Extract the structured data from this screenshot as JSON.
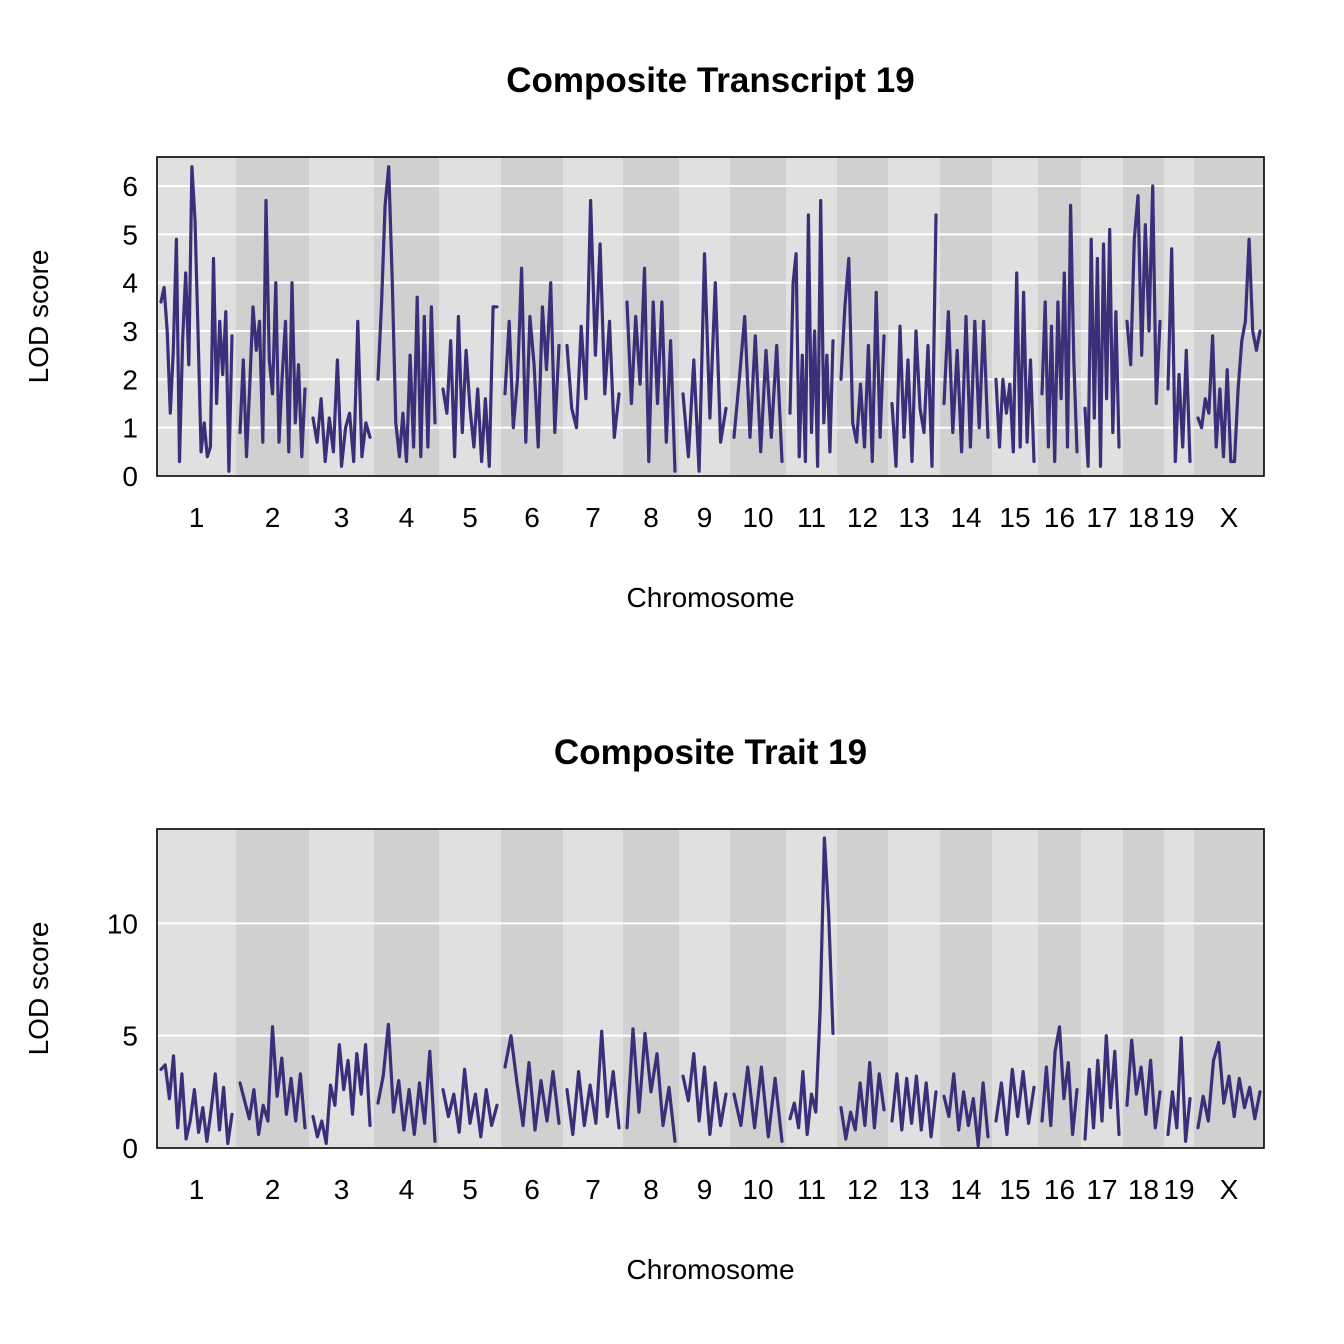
{
  "chart_data": [
    {
      "type": "line",
      "title": "Composite Transcript 19",
      "xlabel": "Chromosome",
      "ylabel": "LOD score",
      "ylim": [
        0,
        6.6
      ],
      "yticks": [
        0,
        1,
        2,
        3,
        4,
        5,
        6
      ],
      "grid": true,
      "chromosomes": [
        "1",
        "2",
        "3",
        "4",
        "5",
        "6",
        "7",
        "8",
        "9",
        "10",
        "11",
        "12",
        "13",
        "14",
        "15",
        "16",
        "17",
        "18",
        "19",
        "X"
      ],
      "series_color": "#3B2F7A",
      "band_colors": [
        "#E0E0E0",
        "#D0D0D0"
      ],
      "profiles": {
        "1": [
          3.6,
          3.9,
          3.0,
          1.3,
          2.6,
          4.9,
          0.3,
          2.8,
          4.2,
          2.3,
          6.4,
          5.3,
          3.0,
          0.5,
          1.1,
          0.4,
          0.6,
          4.5,
          1.5,
          3.2,
          2.1,
          3.4,
          0.1,
          2.9
        ],
        "2": [
          0.9,
          2.4,
          0.4,
          1.9,
          3.5,
          2.6,
          3.2,
          0.7,
          5.7,
          2.4,
          1.7,
          4.0,
          0.7,
          2.1,
          3.2,
          0.5,
          4.0,
          1.1,
          2.3,
          0.4,
          1.8
        ],
        "3": [
          1.2,
          0.7,
          1.6,
          0.3,
          1.2,
          0.5,
          2.4,
          0.2,
          1.0,
          1.3,
          0.3,
          3.2,
          0.4,
          1.1,
          0.8
        ],
        "4": [
          2.0,
          3.6,
          5.6,
          6.4,
          4.0,
          1.1,
          0.4,
          1.3,
          0.3,
          2.5,
          0.6,
          3.7,
          0.4,
          3.3,
          0.6,
          3.5,
          1.1
        ],
        "5": [
          1.8,
          1.3,
          2.8,
          0.4,
          3.3,
          0.9,
          2.6,
          1.4,
          0.6,
          1.8,
          0.3,
          1.6,
          0.2,
          3.5,
          3.5
        ],
        "6": [
          1.7,
          3.2,
          1.0,
          2.0,
          4.3,
          0.7,
          3.3,
          2.3,
          0.6,
          3.5,
          2.2,
          4.0,
          0.9,
          2.7
        ],
        "7": [
          2.7,
          1.4,
          1.0,
          3.1,
          1.6,
          5.7,
          2.5,
          4.8,
          1.7,
          3.2,
          0.8,
          1.7
        ],
        "8": [
          3.6,
          1.5,
          3.3,
          1.9,
          4.3,
          0.3,
          3.6,
          1.5,
          3.6,
          0.7,
          2.8,
          0.1
        ],
        "9": [
          1.7,
          0.4,
          2.4,
          0.1,
          4.6,
          1.2,
          4.0,
          0.7,
          1.4
        ],
        "10": [
          0.8,
          2.0,
          3.3,
          0.8,
          2.9,
          0.5,
          2.6,
          0.8,
          2.7,
          0.3
        ],
        "11": [
          1.3,
          4.0,
          4.6,
          0.4,
          2.5,
          0.3,
          5.4,
          0.9,
          3.0,
          0.2,
          5.7,
          1.1,
          2.5,
          0.5,
          2.8
        ],
        "12": [
          2.0,
          3.5,
          4.5,
          1.1,
          0.7,
          1.9,
          0.6,
          2.7,
          0.3,
          3.8,
          0.8,
          2.9
        ],
        "13": [
          1.5,
          0.2,
          3.1,
          0.8,
          2.4,
          0.3,
          3.0,
          1.4,
          0.9,
          2.7,
          0.2,
          5.4
        ],
        "14": [
          1.5,
          3.4,
          0.9,
          2.6,
          0.5,
          3.3,
          0.6,
          3.2,
          1.0,
          3.2,
          0.8
        ],
        "15": [
          2.0,
          0.6,
          2.0,
          1.3,
          1.9,
          0.5,
          4.2,
          0.6,
          3.8,
          0.7,
          2.4,
          0.3
        ],
        "16": [
          1.7,
          3.6,
          0.6,
          3.1,
          0.3,
          3.6,
          1.6,
          4.2,
          0.6,
          5.6,
          2.4,
          0.5
        ],
        "17": [
          1.4,
          0.2,
          4.9,
          1.2,
          4.5,
          0.2,
          4.8,
          1.6,
          5.1,
          0.9,
          3.4,
          0.6
        ],
        "18": [
          3.2,
          2.3,
          4.9,
          5.8,
          2.5,
          5.2,
          3.0,
          6.0,
          1.5,
          3.2
        ],
        "19": [
          1.8,
          4.7,
          0.3,
          2.1,
          0.6,
          2.6,
          0.3
        ],
        "X": [
          1.2,
          1.0,
          1.6,
          1.3,
          2.9,
          0.6,
          1.8,
          0.4,
          2.2,
          0.3,
          0.3,
          1.8,
          2.8,
          3.2,
          4.9,
          3.0,
          2.6,
          3.0
        ]
      }
    },
    {
      "type": "line",
      "title": "Composite Trait 19",
      "xlabel": "Chromosome",
      "ylabel": "LOD score",
      "ylim": [
        0,
        14.2
      ],
      "yticks": [
        0,
        5,
        10
      ],
      "grid": true,
      "chromosomes": [
        "1",
        "2",
        "3",
        "4",
        "5",
        "6",
        "7",
        "8",
        "9",
        "10",
        "11",
        "12",
        "13",
        "14",
        "15",
        "16",
        "17",
        "18",
        "19",
        "X"
      ],
      "series_color": "#3B2F7A",
      "band_colors": [
        "#E0E0E0",
        "#D0D0D0"
      ],
      "profiles": {
        "1": [
          3.5,
          3.7,
          2.2,
          4.1,
          0.9,
          3.3,
          0.4,
          1.2,
          2.6,
          0.7,
          1.8,
          0.3,
          1.7,
          3.3,
          0.8,
          2.7,
          0.2,
          1.5
        ],
        "2": [
          2.9,
          2.1,
          1.3,
          2.6,
          0.6,
          1.9,
          1.2,
          5.4,
          2.3,
          4.0,
          1.5,
          3.1,
          1.2,
          3.3,
          0.9
        ],
        "3": [
          1.4,
          0.5,
          1.2,
          0.2,
          2.8,
          1.9,
          4.6,
          2.6,
          3.9,
          1.5,
          4.2,
          2.4,
          4.6,
          1.0
        ],
        "4": [
          2.0,
          3.2,
          5.5,
          1.6,
          3.0,
          0.8,
          2.6,
          0.6,
          2.9,
          1.1,
          4.3,
          0.3
        ],
        "5": [
          2.6,
          1.4,
          2.4,
          0.7,
          3.5,
          1.1,
          2.4,
          0.5,
          2.6,
          1.0,
          1.9
        ],
        "6": [
          3.6,
          5.0,
          2.9,
          1.0,
          3.8,
          0.8,
          3.0,
          1.2,
          3.4,
          1.1
        ],
        "7": [
          2.6,
          0.6,
          3.4,
          1.0,
          2.8,
          1.1,
          5.2,
          1.4,
          3.4,
          0.9
        ],
        "8": [
          0.9,
          5.3,
          1.6,
          5.1,
          2.5,
          4.2,
          1.0,
          2.7,
          0.3
        ],
        "9": [
          3.2,
          2.1,
          4.2,
          1.2,
          3.6,
          0.6,
          2.9,
          1.0,
          2.4
        ],
        "10": [
          2.4,
          1.0,
          3.6,
          0.9,
          3.6,
          0.5,
          3.1,
          0.3
        ],
        "11": [
          1.3,
          2.0,
          0.9,
          3.4,
          0.6,
          2.4,
          1.6,
          6.1,
          13.8,
          10.4,
          5.1
        ],
        "12": [
          1.8,
          0.4,
          1.6,
          0.8,
          2.9,
          1.0,
          3.8,
          0.9,
          3.3,
          1.7
        ],
        "13": [
          1.2,
          3.3,
          0.8,
          3.1,
          1.1,
          3.2,
          0.8,
          2.9,
          0.5,
          2.5
        ],
        "14": [
          2.3,
          1.4,
          3.3,
          0.8,
          2.5,
          1.0,
          2.2,
          0.1,
          2.9,
          0.5
        ],
        "15": [
          1.2,
          2.9,
          0.6,
          3.5,
          1.4,
          3.4,
          1.1,
          2.7
        ],
        "16": [
          1.2,
          3.6,
          1.0,
          4.3,
          5.4,
          2.2,
          3.8,
          0.6,
          2.6
        ],
        "17": [
          0.4,
          3.5,
          0.9,
          3.9,
          1.2,
          5.0,
          1.8,
          4.3,
          0.6
        ],
        "18": [
          1.9,
          4.8,
          2.4,
          3.6,
          1.5,
          3.9,
          0.9,
          2.5
        ],
        "19": [
          0.6,
          2.5,
          0.9,
          4.9,
          0.3,
          2.2
        ],
        "X": [
          0.9,
          2.3,
          1.2,
          3.9,
          4.7,
          2.0,
          3.2,
          1.4,
          3.1,
          1.8,
          2.7,
          1.3,
          2.5
        ]
      }
    }
  ]
}
